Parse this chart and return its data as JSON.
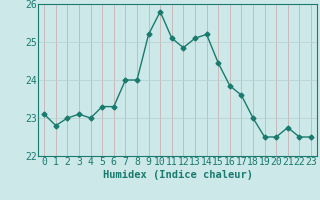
{
  "x": [
    0,
    1,
    2,
    3,
    4,
    5,
    6,
    7,
    8,
    9,
    10,
    11,
    12,
    13,
    14,
    15,
    16,
    17,
    18,
    19,
    20,
    21,
    22,
    23
  ],
  "y": [
    23.1,
    22.8,
    23.0,
    23.1,
    23.0,
    23.3,
    23.3,
    24.0,
    24.0,
    25.2,
    25.8,
    25.1,
    24.85,
    25.1,
    25.2,
    24.45,
    23.85,
    23.6,
    23.0,
    22.5,
    22.5,
    22.75,
    22.5,
    22.5
  ],
  "line_color": "#1a7a6e",
  "marker": "D",
  "markersize": 2.5,
  "linewidth": 1.0,
  "bg_color": "#cce8e8",
  "grid_color_v": "#c8a8a8",
  "grid_color_h": "#b8cece",
  "xlabel": "Humidex (Indice chaleur)",
  "ylim": [
    22,
    26
  ],
  "xlim": [
    -0.5,
    23.5
  ],
  "yticks": [
    22,
    23,
    24,
    25,
    26
  ],
  "xticks": [
    0,
    1,
    2,
    3,
    4,
    5,
    6,
    7,
    8,
    9,
    10,
    11,
    12,
    13,
    14,
    15,
    16,
    17,
    18,
    19,
    20,
    21,
    22,
    23
  ],
  "xlabel_fontsize": 7.5,
  "tick_fontsize": 7.0
}
